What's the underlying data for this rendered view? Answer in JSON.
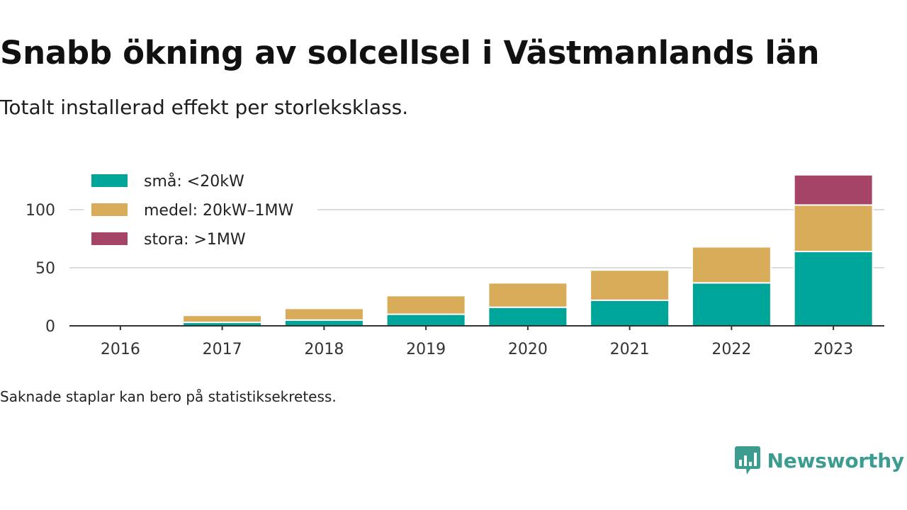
{
  "header": {
    "title": "Snabb ökning av solcellsel i Västmanlands län",
    "subtitle": "Totalt installerad effekt per storleksklass."
  },
  "footer": {
    "note": "Saknade staplar kan bero på statistiksekretess.",
    "brand": "Newsworthy",
    "brand_icon": "bar-chart-speech-bubble-icon",
    "brand_color": "#3d9c90"
  },
  "chart_data": {
    "type": "bar",
    "stacked": true,
    "categories": [
      "2016",
      "2017",
      "2018",
      "2019",
      "2020",
      "2021",
      "2022",
      "2023"
    ],
    "series": [
      {
        "name": "små: <20kW",
        "color": "#00a59a",
        "values": [
          0,
          3,
          5,
          10,
          16,
          22,
          37,
          64
        ]
      },
      {
        "name": "medel: 20kW–1MW",
        "color": "#d9ac5a",
        "values": [
          0,
          6,
          10,
          16,
          21,
          26,
          31,
          40
        ]
      },
      {
        "name": "stora: >1MW",
        "color": "#a64468",
        "values": [
          0,
          0,
          0,
          0,
          0,
          0,
          0,
          26
        ]
      }
    ],
    "yticks": [
      0,
      50,
      100
    ],
    "ylim": [
      0,
      130
    ],
    "grid": true,
    "legend": "top-left"
  }
}
